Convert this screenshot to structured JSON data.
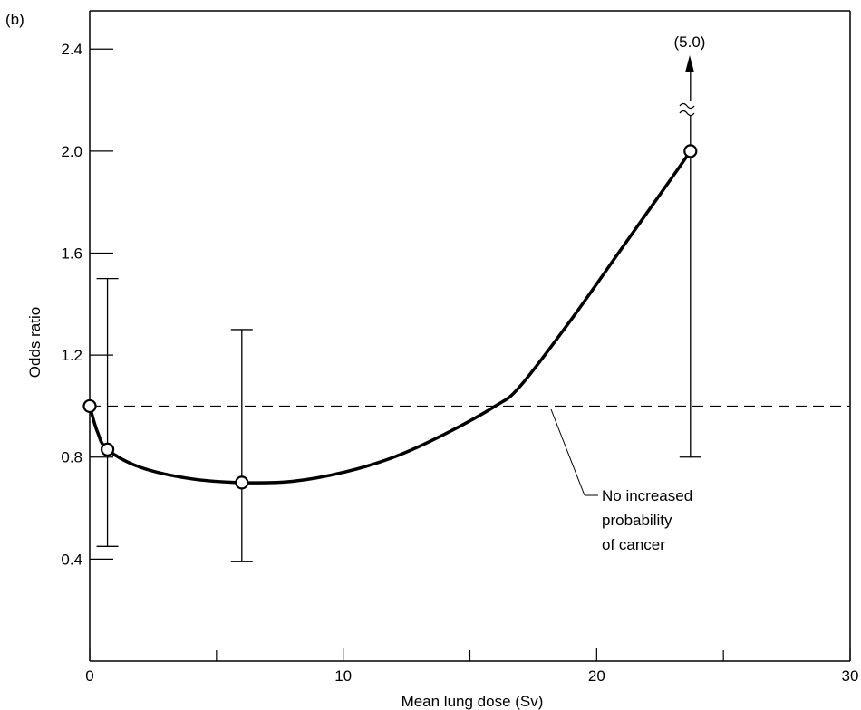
{
  "chart_data": {
    "type": "line",
    "panel_label": "(b)",
    "xlabel": "Mean lung dose (Sv)",
    "ylabel": "Odds ratio",
    "xlim": [
      0,
      30
    ],
    "ylim": [
      0,
      2.55
    ],
    "x_ticks": [
      0,
      10,
      20,
      30
    ],
    "x_minor_ticks": [
      5,
      15,
      25
    ],
    "x_tick_labels": [
      "0",
      "10",
      "20",
      "30"
    ],
    "y_ticks": [
      0.4,
      0.8,
      1.2,
      1.6,
      2.0,
      2.4
    ],
    "y_tick_labels": [
      "0.4",
      "0.8",
      "1.2",
      "1.6",
      "2.0",
      "2.4"
    ],
    "points": [
      {
        "x": 0.0,
        "y": 1.0
      },
      {
        "x": 0.7,
        "y": 0.83,
        "ci_low": 0.45,
        "ci_high": 1.5
      },
      {
        "x": 6.0,
        "y": 0.7,
        "ci_low": 0.39,
        "ci_high": 1.3
      },
      {
        "x": 23.7,
        "y": 2.0,
        "ci_low": 0.8,
        "ci_high_label": "(5.0)",
        "ci_high_value": 5.0
      }
    ],
    "curve": [
      [
        0.0,
        1.0
      ],
      [
        0.3,
        0.9
      ],
      [
        0.7,
        0.83
      ],
      [
        2,
        0.76
      ],
      [
        4,
        0.715
      ],
      [
        6,
        0.7
      ],
      [
        8,
        0.705
      ],
      [
        10,
        0.74
      ],
      [
        12,
        0.8
      ],
      [
        14,
        0.89
      ],
      [
        16,
        1.0
      ],
      [
        17,
        1.08
      ],
      [
        19,
        1.34
      ],
      [
        21,
        1.62
      ],
      [
        23,
        1.9
      ],
      [
        23.7,
        2.0
      ]
    ],
    "reference_line": {
      "y": 1.0,
      "style": "dashed"
    },
    "annotation": "No increased\nprobability\nof cancer",
    "annotation_lines": [
      "No increased",
      "probability",
      "of cancer"
    ],
    "grid": false
  }
}
